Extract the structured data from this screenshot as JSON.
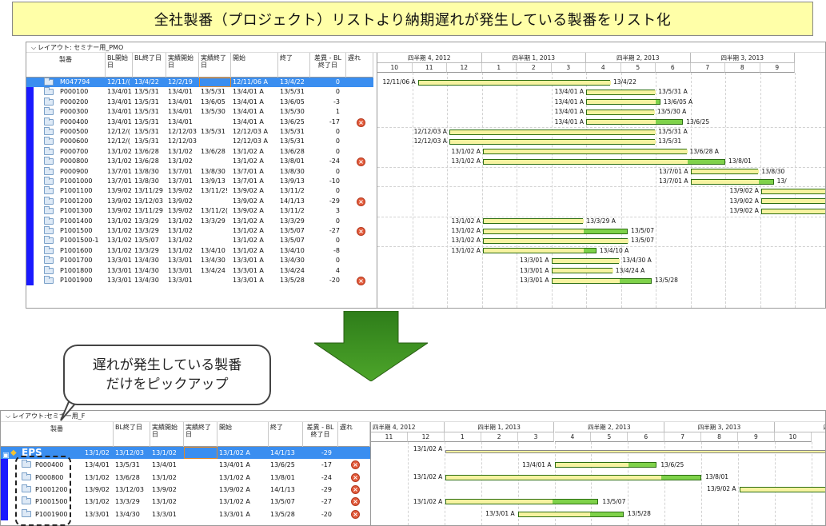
{
  "title": "全社製番（プロジェクト）リストより納期遅れが発生している製番をリスト化",
  "callout": {
    "line1": "遅れが発生している製番",
    "line2": "だけをピックアップ"
  },
  "top": {
    "layout_label": "レイアウト: セミナー用_PMO",
    "headers": {
      "seiban": "製番",
      "bl_start": "BL開始日",
      "bl_end": "BL終了日",
      "act_start": "実績開始日",
      "act_end": "実績終了日",
      "start": "開始",
      "end": "終了",
      "diff": "差異 - BL終了日",
      "delay": "遅れ"
    },
    "quarters": [
      "四半期 4, 2012",
      "四半期 1, 2013",
      "四半期 2, 2013",
      "四半期 3, 2013"
    ],
    "months": [
      "10",
      "11",
      "12",
      "1",
      "2",
      "3",
      "4",
      "5",
      "6",
      "7",
      "8",
      "9"
    ],
    "rows": [
      {
        "id": "M047794",
        "bls": "12/11/(",
        "ble": "13/4/22",
        "acs": "12/2/19",
        "ace": "",
        "st": "12/11/06 A",
        "en": "13/4/22",
        "df": "0",
        "late": false,
        "sel": true,
        "lbl1": "12/11/06 A",
        "lbl2": "13/4/22"
      },
      {
        "id": "P000100",
        "bls": "13/4/01",
        "ble": "13/5/31",
        "acs": "13/4/01",
        "ace": "13/5/31",
        "st": "13/4/01 A",
        "en": "13/5/31",
        "df": "0",
        "late": false,
        "lbl1": "13/4/01 A",
        "lbl2": "13/5/31 A"
      },
      {
        "id": "P000200",
        "bls": "13/4/01",
        "ble": "13/5/31",
        "acs": "13/4/01",
        "ace": "13/6/05",
        "st": "13/4/01 A",
        "en": "13/6/05",
        "df": "-3",
        "late": false,
        "lbl1": "13/4/01 A",
        "lbl2": "13/6/05 A"
      },
      {
        "id": "P000300",
        "bls": "13/4/01",
        "ble": "13/5/31",
        "acs": "13/4/01",
        "ace": "13/5/30",
        "st": "13/4/01 A",
        "en": "13/5/30",
        "df": "1",
        "late": false,
        "lbl1": "13/4/01 A",
        "lbl2": "13/5/30 A"
      },
      {
        "id": "P000400",
        "bls": "13/4/01",
        "ble": "13/5/31",
        "acs": "13/4/01",
        "ace": "",
        "st": "13/4/01 A",
        "en": "13/6/25",
        "df": "-17",
        "late": true,
        "lbl1": "13/4/01 A",
        "lbl2": "13/6/25"
      },
      {
        "id": "P000500",
        "bls": "12/12/(",
        "ble": "13/5/31",
        "acs": "12/12/03",
        "ace": "13/5/31",
        "st": "12/12/03 A",
        "en": "13/5/31",
        "df": "0",
        "late": false,
        "lbl1": "12/12/03 A",
        "lbl2": "13/5/31 A"
      },
      {
        "id": "P000600",
        "bls": "12/12/(",
        "ble": "13/5/31",
        "acs": "12/12/03",
        "ace": "",
        "st": "12/12/03 A",
        "en": "13/5/31",
        "df": "0",
        "late": false,
        "lbl1": "12/12/03 A",
        "lbl2": "13/5/31"
      },
      {
        "id": "P000700",
        "bls": "13/1/02",
        "ble": "13/6/28",
        "acs": "13/1/02",
        "ace": "13/6/28",
        "st": "13/1/02 A",
        "en": "13/6/28",
        "df": "0",
        "late": false,
        "lbl1": "13/1/02 A",
        "lbl2": "13/6/28 A"
      },
      {
        "id": "P000800",
        "bls": "13/1/02",
        "ble": "13/6/28",
        "acs": "13/1/02",
        "ace": "",
        "st": "13/1/02 A",
        "en": "13/8/01",
        "df": "-24",
        "late": true,
        "lbl1": "13/1/02 A",
        "lbl2": "13/8/01"
      },
      {
        "id": "P000900",
        "bls": "13/7/01",
        "ble": "13/8/30",
        "acs": "13/7/01",
        "ace": "13/8/30",
        "st": "13/7/01 A",
        "en": "13/8/30",
        "df": "0",
        "late": false,
        "lbl1": "13/7/01 A",
        "lbl2": "13/8/30"
      },
      {
        "id": "P1001000",
        "bls": "13/7/01",
        "ble": "13/8/30",
        "acs": "13/7/01",
        "ace": "13/9/13",
        "st": "13/7/01 A",
        "en": "13/9/13",
        "df": "-10",
        "late": false,
        "lbl1": "13/7/01 A",
        "lbl2": "13/"
      },
      {
        "id": "P1001100",
        "bls": "13/9/02",
        "ble": "13/11/29",
        "acs": "13/9/02",
        "ace": "13/11/2!",
        "st": "13/9/02 A",
        "en": "13/11/2",
        "df": "0",
        "late": false,
        "lbl1": "13/9/02 A",
        "lbl2": ""
      },
      {
        "id": "P1001200",
        "bls": "13/9/02",
        "ble": "13/12/03",
        "acs": "13/9/02",
        "ace": "",
        "st": "13/9/02 A",
        "en": "14/1/13",
        "df": "-29",
        "late": true,
        "lbl1": "13/9/02 A",
        "lbl2": ""
      },
      {
        "id": "P1001300",
        "bls": "13/9/02",
        "ble": "13/11/29",
        "acs": "13/9/02",
        "ace": "13/11/2(",
        "st": "13/9/02 A",
        "en": "13/11/2",
        "df": "3",
        "late": false,
        "lbl1": "13/9/02 A",
        "lbl2": ""
      },
      {
        "id": "P1001400",
        "bls": "13/1/02",
        "ble": "13/3/29",
        "acs": "13/1/02",
        "ace": "13/3/29",
        "st": "13/1/02 A",
        "en": "13/3/29",
        "df": "0",
        "late": false,
        "lbl1": "13/1/02 A",
        "lbl2": "13/3/29 A"
      },
      {
        "id": "P1001500",
        "bls": "13/1/02",
        "ble": "13/3/29",
        "acs": "13/1/02",
        "ace": "",
        "st": "13/1/02 A",
        "en": "13/5/07",
        "df": "-27",
        "late": true,
        "lbl1": "13/1/02 A",
        "lbl2": "13/5/07"
      },
      {
        "id": "P1001500-1",
        "bls": "13/1/02",
        "ble": "13/5/07",
        "acs": "13/1/02",
        "ace": "",
        "st": "13/1/02 A",
        "en": "13/5/07",
        "df": "0",
        "late": false,
        "lbl1": "13/1/02 A",
        "lbl2": "13/5/07"
      },
      {
        "id": "P1001600",
        "bls": "13/1/02",
        "ble": "13/3/29",
        "acs": "13/1/02",
        "ace": "13/4/10",
        "st": "13/1/02 A",
        "en": "13/4/10",
        "df": "-8",
        "late": false,
        "lbl1": "13/1/02 A",
        "lbl2": "13/4/10 A"
      },
      {
        "id": "P1001700",
        "bls": "13/3/01",
        "ble": "13/4/30",
        "acs": "13/3/01",
        "ace": "13/4/30",
        "st": "13/3/01 A",
        "en": "13/4/30",
        "df": "0",
        "late": false,
        "lbl1": "13/3/01 A",
        "lbl2": "13/4/30 A"
      },
      {
        "id": "P1001800",
        "bls": "13/3/01",
        "ble": "13/4/30",
        "acs": "13/3/01",
        "ace": "13/4/24",
        "st": "13/3/01 A",
        "en": "13/4/24",
        "df": "4",
        "late": false,
        "lbl1": "13/3/01 A",
        "lbl2": "13/4/24 A"
      },
      {
        "id": "P1001900",
        "bls": "13/3/01",
        "ble": "13/4/30",
        "acs": "13/3/01",
        "ace": "",
        "st": "13/3/01 A",
        "en": "13/5/28",
        "df": "-20",
        "late": true,
        "lbl1": "13/3/01 A",
        "lbl2": "13/5/28"
      }
    ]
  },
  "bottom": {
    "layout_label": "レイアウト:セミナー用_F",
    "headers": {
      "seiban": "製番",
      "ble": "BL終了日",
      "acs": "実績開始日",
      "ace": "実績終了日",
      "start": "開始",
      "end": "終了",
      "diff": "差異 - BL終了日",
      "delay": "遅れ"
    },
    "quarters": [
      "四半期 4, 2012",
      "四半期 1, 2013",
      "四半期 2, 2013",
      "四半期 3, 2013",
      "四半"
    ],
    "months": [
      "11",
      "12",
      "1",
      "2",
      "3",
      "4",
      "5",
      "6",
      "7",
      "8",
      "9",
      "10"
    ],
    "group": {
      "name": "EPS",
      "bls": "13/1/02",
      "ble": "13/12/03",
      "acs": "13/1/02",
      "st": "13/1/02 A",
      "en": "14/1/13",
      "df": "-29",
      "lbl1": "13/1/02 A"
    },
    "rows": [
      {
        "id": "P000400",
        "bls": "13/4/01",
        "ble": "13/5/31",
        "acs": "13/4/01",
        "st": "13/4/01 A",
        "en": "13/6/25",
        "df": "-17",
        "lbl1": "13/4/01 A",
        "lbl2": "13/6/25"
      },
      {
        "id": "P000800",
        "bls": "13/1/02",
        "ble": "13/6/28",
        "acs": "13/1/02",
        "st": "13/1/02 A",
        "en": "13/8/01",
        "df": "-24",
        "lbl1": "13/1/02 A",
        "lbl2": "13/8/01"
      },
      {
        "id": "P1001200",
        "bls": "13/9/02",
        "ble": "13/12/03",
        "acs": "13/9/02",
        "st": "13/9/02 A",
        "en": "14/1/13",
        "df": "-29",
        "lbl1": "13/9/02 A",
        "lbl2": ""
      },
      {
        "id": "P1001500",
        "bls": "13/1/02",
        "ble": "13/3/29",
        "acs": "13/1/02",
        "st": "13/1/02 A",
        "en": "13/5/07",
        "df": "-27",
        "lbl1": "13/1/02 A",
        "lbl2": "13/5/07"
      },
      {
        "id": "P1001900",
        "bls": "13/3/01",
        "ble": "13/4/30",
        "acs": "13/3/01",
        "st": "13/3/01 A",
        "en": "13/5/28",
        "df": "-20",
        "lbl1": "13/3/01 A",
        "lbl2": "13/5/28"
      }
    ]
  },
  "colors": {
    "banner": "#ffffa8",
    "selection": "#3a8ef0",
    "bar_actual": "#7fd24a",
    "bar_baseline": "#f7f3a0",
    "delay_icon": "#e25a3a",
    "left_stripe": "#1a1aff"
  },
  "icons": {
    "row_icon": "folder-icon",
    "delay": "delay-x-icon",
    "arrow": "down-arrow-icon",
    "group": "diamond-icon"
  }
}
